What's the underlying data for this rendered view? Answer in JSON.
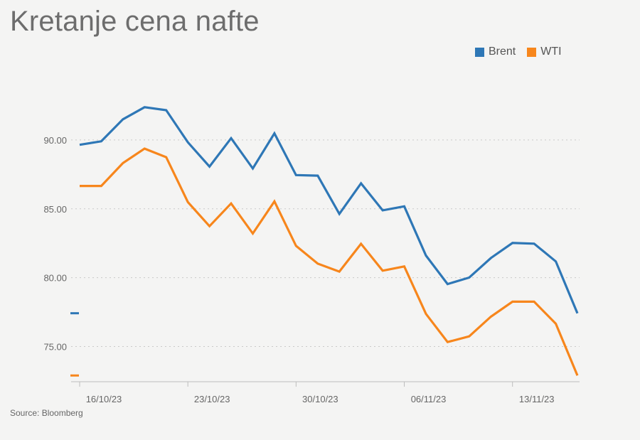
{
  "title": "Kretanje cena nafte",
  "source": "Source: Bloomberg",
  "legend": [
    {
      "name": "Brent",
      "color": "#2e77b6"
    },
    {
      "name": "WTI",
      "color": "#f7861c"
    }
  ],
  "chart_data": {
    "type": "line",
    "title": "Kretanje cena nafte",
    "xlabel": "",
    "ylabel": "",
    "x": [
      "16/10/23",
      "17/10/23",
      "18/10/23",
      "19/10/23",
      "20/10/23",
      "23/10/23",
      "24/10/23",
      "25/10/23",
      "26/10/23",
      "27/10/23",
      "30/10/23",
      "31/10/23",
      "01/11/23",
      "02/11/23",
      "03/11/23",
      "06/11/23",
      "07/11/23",
      "08/11/23",
      "09/11/23",
      "10/11/23",
      "13/11/23",
      "14/11/23",
      "15/11/23",
      "16/11/23"
    ],
    "x_tick_labels": [
      "16/10/23",
      "23/10/23",
      "30/10/23",
      "06/11/23",
      "13/11/23"
    ],
    "x_tick_indices": [
      0,
      5,
      10,
      15,
      20
    ],
    "y_ticks": [
      75,
      80,
      85,
      90
    ],
    "y_tick_labels": [
      "75.00",
      "80.00",
      "85.00",
      "90.00"
    ],
    "ylim": [
      72.5,
      95
    ],
    "grid": true,
    "legend_position": "top-right",
    "series": [
      {
        "name": "Brent",
        "color": "#2e77b6",
        "values": [
          89.65,
          89.9,
          91.5,
          92.38,
          92.16,
          89.83,
          88.07,
          90.13,
          87.93,
          90.48,
          87.45,
          87.41,
          84.63,
          86.85,
          84.89,
          85.18,
          81.61,
          79.54,
          80.01,
          81.43,
          82.52,
          82.47,
          81.18,
          77.42
        ]
      },
      {
        "name": "WTI",
        "color": "#f7861c",
        "values": [
          86.66,
          86.66,
          88.32,
          89.37,
          88.75,
          85.49,
          83.74,
          85.39,
          83.21,
          85.54,
          82.31,
          81.02,
          80.44,
          82.46,
          80.51,
          80.82,
          77.37,
          75.33,
          75.74,
          77.17,
          78.26,
          78.26,
          76.66,
          72.9
        ]
      }
    ]
  }
}
